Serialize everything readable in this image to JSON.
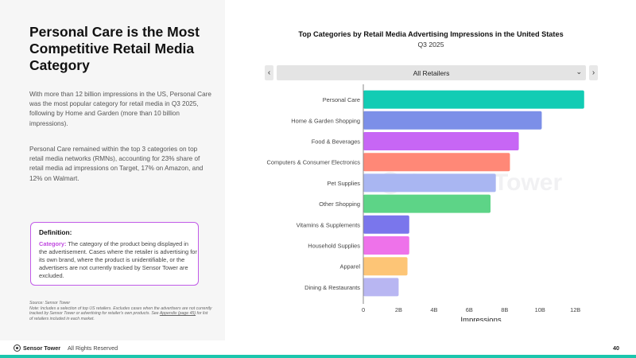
{
  "headline": "Personal Care is the Most Competitive Retail Media Category",
  "paragraphs": [
    "With more than 12 billion impressions in the US, Personal Care was the most popular category for retail media in Q3 2025, following by Home and Garden (more than 10 billion impressions).",
    "Personal Care remained within the top 3 categories on top retail media networks (RMNs), accounting for 23% share of retail media ad impressions on Target, 17% on Amazon, and 12% on Walmart."
  ],
  "definition": {
    "title": "Definition:",
    "term": "Category:",
    "text": " The category of the product being displayed in the advertisement. Cases where the retailer is advertising for its own brand, where the product is unidentifiable, or the advertisers are not currently tracked by Sensor Tower are excluded."
  },
  "source": "Source: Sensor Tower",
  "note": {
    "before": "Note: Includes a selection of top US retailers. Excludes cases when the advertisers are not currently tracked by Sensor Tower or advertising for retailer's own products. See ",
    "link": "Appendix (page 45)",
    "after": " for list of retailers included in each market."
  },
  "footer": {
    "brand": "Sensor Tower",
    "rights": "All Rights Reserved",
    "page": "40"
  },
  "selector": {
    "value": "All Retailers",
    "prev": "‹",
    "next": "›",
    "chevron": "⌄"
  },
  "watermark": "Sensor Tower",
  "colors": {
    "accent": "#1bc6ad",
    "definition_border": "#c15be8"
  },
  "chart_data": {
    "type": "bar",
    "orientation": "horizontal",
    "title": "Top Categories by Retail Media Advertising Impressions in the United States",
    "subtitle": "Q3 2025",
    "xlabel": "Impressions",
    "ylabel": "",
    "xlim": [
      0,
      12.6
    ],
    "ticks": [
      0,
      2,
      4,
      6,
      8,
      10,
      12
    ],
    "tick_labels": [
      "0",
      "2B",
      "4B",
      "6B",
      "8B",
      "10B",
      "12B"
    ],
    "categories": [
      "Personal Care",
      "Home & Garden Shopping",
      "Food & Beverages",
      "Computers & Consumer Electronics",
      "Pet Supplies",
      "Other Shopping",
      "Vitamins & Supplements",
      "Household Supplies",
      "Apparel",
      "Dining & Restaurants"
    ],
    "values": [
      12.5,
      10.1,
      8.8,
      8.3,
      7.5,
      7.2,
      2.6,
      2.6,
      2.5,
      2.0
    ],
    "bar_colors": [
      "#12ccb4",
      "#7c8fe8",
      "#c766f5",
      "#ff8877",
      "#a9b6f2",
      "#5dd487",
      "#7a76ec",
      "#ee72ea",
      "#fdc576",
      "#b8b6f2"
    ],
    "grid": false
  }
}
